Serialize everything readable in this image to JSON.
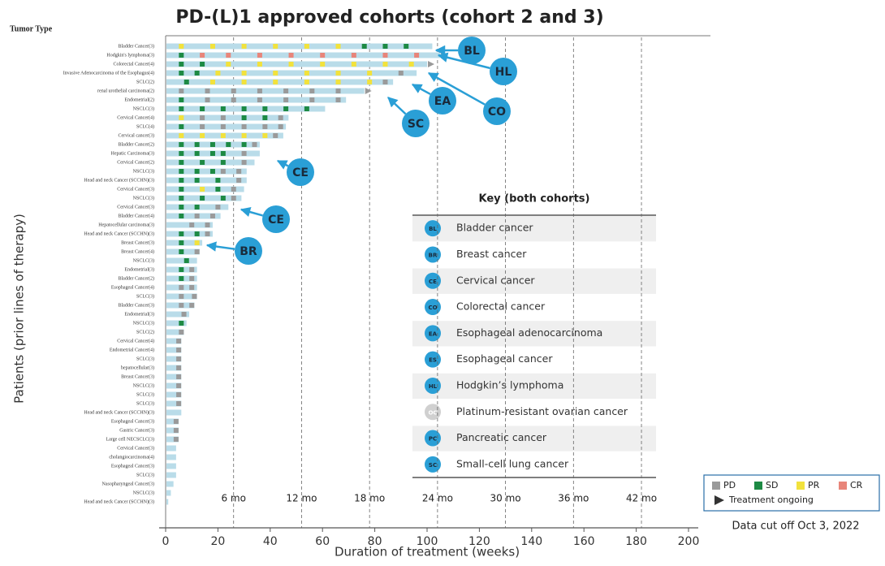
{
  "chart_data": {
    "type": "swimmer",
    "title": "PD-(L)1 approved cohorts (cohort 2 and 3)",
    "row_header": "Tumor Type",
    "xlabel": "Duration of treatment (weeks)",
    "ylabel": "Patients (prior lines of therapy)",
    "xlim": [
      0,
      200
    ],
    "xticks": [
      0,
      20,
      40,
      60,
      80,
      100,
      120,
      140,
      160,
      180,
      200
    ],
    "x2ticks": [
      {
        "value": 26,
        "label": "6 mo"
      },
      {
        "value": 52,
        "label": "12 mo"
      },
      {
        "value": 78,
        "label": "18 mo"
      },
      {
        "value": 104,
        "label": "24 mo"
      },
      {
        "value": 130,
        "label": "30 mo"
      },
      {
        "value": 156,
        "label": "36 mo"
      },
      {
        "value": 182,
        "label": "42 mo"
      }
    ],
    "bar_color": "#b9dce9",
    "status_colors": {
      "PD": "#9a9a9a",
      "SD": "#1d8a44",
      "PR": "#f2e23c",
      "CR": "#e8857a"
    },
    "legend": [
      {
        "status": "PD",
        "label": "PD"
      },
      {
        "status": "SD",
        "label": "SD"
      },
      {
        "status": "PR",
        "label": "PR"
      },
      {
        "status": "CR",
        "label": "CR"
      }
    ],
    "ongoing_label": "Treatment ongoing",
    "footnote": "Data cut off Oct 3, 2022",
    "patients": [
      {
        "label": "Bladder Cancer(3)",
        "weeks": 102,
        "responses": [
          [
            6,
            "PR"
          ],
          [
            18,
            "PR"
          ],
          [
            30,
            "PR"
          ],
          [
            42,
            "PR"
          ],
          [
            54,
            "PR"
          ],
          [
            66,
            "PR"
          ],
          [
            76,
            "SD"
          ],
          [
            84,
            "SD"
          ],
          [
            92,
            "SD"
          ]
        ]
      },
      {
        "label": "Hodgkin's lymphoma(3)",
        "weeks": 105,
        "ongoing": true,
        "responses": [
          [
            6,
            "SD"
          ],
          [
            14,
            "CR"
          ],
          [
            24,
            "CR"
          ],
          [
            36,
            "CR"
          ],
          [
            48,
            "CR"
          ],
          [
            60,
            "CR"
          ],
          [
            72,
            "CR"
          ],
          [
            84,
            "CR"
          ],
          [
            96,
            "CR"
          ]
        ]
      },
      {
        "label": "Colorectal Cancer(4)",
        "weeks": 100,
        "ongoing": true,
        "responses": [
          [
            6,
            "SD"
          ],
          [
            14,
            "SD"
          ],
          [
            24,
            "PR"
          ],
          [
            36,
            "PR"
          ],
          [
            48,
            "PR"
          ],
          [
            60,
            "PR"
          ],
          [
            72,
            "PR"
          ],
          [
            84,
            "PR"
          ],
          [
            94,
            "PR"
          ]
        ]
      },
      {
        "label": "Invasive Adenocarcinoma of the Esophagus(4)",
        "weeks": 96,
        "responses": [
          [
            6,
            "SD"
          ],
          [
            12,
            "SD"
          ],
          [
            20,
            "PR"
          ],
          [
            30,
            "PR"
          ],
          [
            42,
            "PR"
          ],
          [
            54,
            "PR"
          ],
          [
            66,
            "PR"
          ],
          [
            78,
            "PR"
          ],
          [
            90,
            "PD"
          ]
        ]
      },
      {
        "label": "SCLC(2)",
        "weeks": 87,
        "responses": [
          [
            8,
            "SD"
          ],
          [
            18,
            "PR"
          ],
          [
            30,
            "PR"
          ],
          [
            42,
            "PR"
          ],
          [
            54,
            "PR"
          ],
          [
            66,
            "PR"
          ],
          [
            78,
            "PR"
          ],
          [
            84,
            "PD"
          ]
        ]
      },
      {
        "label": "renal urothelial carcinoma(2)",
        "weeks": 76,
        "ongoing": true,
        "responses": [
          [
            6,
            "PD"
          ],
          [
            16,
            "PD"
          ],
          [
            26,
            "PD"
          ],
          [
            36,
            "PD"
          ],
          [
            46,
            "PD"
          ],
          [
            56,
            "PD"
          ],
          [
            66,
            "PD"
          ]
        ]
      },
      {
        "label": "Endometrial(2)",
        "weeks": 69,
        "responses": [
          [
            6,
            "SD"
          ],
          [
            16,
            "PD"
          ],
          [
            26,
            "PD"
          ],
          [
            36,
            "PD"
          ],
          [
            46,
            "PD"
          ],
          [
            56,
            "PD"
          ],
          [
            66,
            "PD"
          ]
        ]
      },
      {
        "label": "NSCLC(3)",
        "weeks": 61,
        "responses": [
          [
            6,
            "SD"
          ],
          [
            14,
            "SD"
          ],
          [
            22,
            "SD"
          ],
          [
            30,
            "SD"
          ],
          [
            38,
            "SD"
          ],
          [
            46,
            "SD"
          ],
          [
            54,
            "SD"
          ]
        ]
      },
      {
        "label": "Cervical Cancer(4)",
        "weeks": 47,
        "responses": [
          [
            6,
            "PR"
          ],
          [
            14,
            "PD"
          ],
          [
            22,
            "PD"
          ],
          [
            30,
            "SD"
          ],
          [
            38,
            "SD"
          ],
          [
            44,
            "PD"
          ]
        ]
      },
      {
        "label": "SCLC(4)",
        "weeks": 46,
        "responses": [
          [
            6,
            "SD"
          ],
          [
            14,
            "PD"
          ],
          [
            22,
            "PD"
          ],
          [
            30,
            "PD"
          ],
          [
            38,
            "PD"
          ],
          [
            44,
            "PD"
          ]
        ]
      },
      {
        "label": "Cervical cancer(3)",
        "weeks": 45,
        "responses": [
          [
            6,
            "PR"
          ],
          [
            14,
            "PR"
          ],
          [
            22,
            "PR"
          ],
          [
            30,
            "PR"
          ],
          [
            38,
            "PR"
          ],
          [
            42,
            "PD"
          ]
        ]
      },
      {
        "label": "Bladder Cancer(2)",
        "weeks": 36,
        "responses": [
          [
            6,
            "SD"
          ],
          [
            12,
            "SD"
          ],
          [
            18,
            "SD"
          ],
          [
            24,
            "SD"
          ],
          [
            30,
            "SD"
          ],
          [
            34,
            "PD"
          ]
        ]
      },
      {
        "label": "Hepatic Carcinoma(3)",
        "weeks": 36,
        "responses": [
          [
            6,
            "SD"
          ],
          [
            12,
            "SD"
          ],
          [
            18,
            "SD"
          ],
          [
            22,
            "SD"
          ],
          [
            30,
            "PD"
          ]
        ]
      },
      {
        "label": "Cervical Cancer(2)",
        "weeks": 34,
        "responses": [
          [
            6,
            "SD"
          ],
          [
            14,
            "SD"
          ],
          [
            22,
            "SD"
          ],
          [
            30,
            "PD"
          ]
        ]
      },
      {
        "label": "NSCLC(3)",
        "weeks": 31,
        "responses": [
          [
            6,
            "SD"
          ],
          [
            12,
            "SD"
          ],
          [
            18,
            "SD"
          ],
          [
            22,
            "PD"
          ],
          [
            28,
            "PD"
          ]
        ]
      },
      {
        "label": "Head and neck Cancer (SCCHN)(3)",
        "weeks": 31,
        "responses": [
          [
            6,
            "SD"
          ],
          [
            12,
            "SD"
          ],
          [
            20,
            "SD"
          ],
          [
            28,
            "PD"
          ]
        ]
      },
      {
        "label": "Cervical Cancer(3)",
        "weeks": 30,
        "responses": [
          [
            6,
            "SD"
          ],
          [
            14,
            "PR"
          ],
          [
            20,
            "SD"
          ],
          [
            26,
            "PD"
          ]
        ]
      },
      {
        "label": "NSCLC(3)",
        "weeks": 29,
        "responses": [
          [
            6,
            "SD"
          ],
          [
            14,
            "SD"
          ],
          [
            22,
            "SD"
          ],
          [
            26,
            "PD"
          ]
        ]
      },
      {
        "label": "Cervical Cancer(3)",
        "weeks": 24,
        "responses": [
          [
            6,
            "SD"
          ],
          [
            12,
            "SD"
          ],
          [
            20,
            "PD"
          ]
        ]
      },
      {
        "label": "Bladder Cancer(4)",
        "weeks": 21,
        "responses": [
          [
            6,
            "SD"
          ],
          [
            12,
            "PD"
          ],
          [
            18,
            "PD"
          ]
        ]
      },
      {
        "label": "Hepatocellular carcinoma(3)",
        "weeks": 18,
        "responses": [
          [
            10,
            "PD"
          ],
          [
            16,
            "PD"
          ]
        ]
      },
      {
        "label": "Head and neck Cancer (SCCHN)(3)",
        "weeks": 18,
        "responses": [
          [
            6,
            "SD"
          ],
          [
            12,
            "SD"
          ],
          [
            16,
            "PD"
          ]
        ]
      },
      {
        "label": "Breast Cancer(3)",
        "weeks": 14,
        "responses": [
          [
            6,
            "SD"
          ],
          [
            12,
            "PR"
          ]
        ]
      },
      {
        "label": "Breast Cancer(4)",
        "weeks": 13,
        "responses": [
          [
            6,
            "SD"
          ],
          [
            12,
            "PD"
          ]
        ]
      },
      {
        "label": "NSCLC(3)",
        "weeks": 12,
        "responses": [
          [
            8,
            "SD"
          ]
        ]
      },
      {
        "label": "Endometrial(3)",
        "weeks": 12,
        "responses": [
          [
            6,
            "SD"
          ],
          [
            10,
            "PD"
          ]
        ]
      },
      {
        "label": "Bladder Cancer(2)",
        "weeks": 12,
        "responses": [
          [
            6,
            "SD"
          ],
          [
            10,
            "PD"
          ]
        ]
      },
      {
        "label": "Esophageal Cancer(4)",
        "weeks": 12,
        "responses": [
          [
            6,
            "PD"
          ],
          [
            10,
            "PD"
          ]
        ]
      },
      {
        "label": "SCLC(3)",
        "weeks": 12,
        "responses": [
          [
            6,
            "PD"
          ],
          [
            11,
            "PD"
          ]
        ]
      },
      {
        "label": "Bladder Cancer(3)",
        "weeks": 11,
        "responses": [
          [
            6,
            "PD"
          ],
          [
            10,
            "PD"
          ]
        ]
      },
      {
        "label": "Endometrial(3)",
        "weeks": 9,
        "responses": [
          [
            7,
            "PD"
          ]
        ]
      },
      {
        "label": "NSCLC(3)",
        "weeks": 8,
        "responses": [
          [
            6,
            "SD"
          ]
        ]
      },
      {
        "label": "SCLC(2)",
        "weeks": 7,
        "responses": [
          [
            6,
            "PD"
          ]
        ]
      },
      {
        "label": "Cervical Cancer(4)",
        "weeks": 6,
        "responses": [
          [
            5,
            "PD"
          ]
        ]
      },
      {
        "label": "Endometrial Cancer(4)",
        "weeks": 6,
        "responses": [
          [
            5,
            "PD"
          ]
        ]
      },
      {
        "label": "SCLC(3)",
        "weeks": 6,
        "responses": [
          [
            5,
            "PD"
          ]
        ]
      },
      {
        "label": "hepatocellular(3)",
        "weeks": 6,
        "responses": [
          [
            5,
            "PD"
          ]
        ]
      },
      {
        "label": "Breast Cancer(3)",
        "weeks": 6,
        "responses": [
          [
            5,
            "PD"
          ]
        ]
      },
      {
        "label": "NSCLC(3)",
        "weeks": 6,
        "responses": [
          [
            5,
            "PD"
          ]
        ]
      },
      {
        "label": "SCLC(3)",
        "weeks": 6,
        "responses": [
          [
            5,
            "PD"
          ]
        ]
      },
      {
        "label": "SCLC(3)",
        "weeks": 6,
        "responses": [
          [
            5,
            "PD"
          ]
        ]
      },
      {
        "label": "Head and neck Cancer (SCCHN)(3)",
        "weeks": 6,
        "responses": []
      },
      {
        "label": "Esophageal Cancer(3)",
        "weeks": 5,
        "responses": [
          [
            4,
            "PD"
          ]
        ]
      },
      {
        "label": "Gastric Cancer(3)",
        "weeks": 5,
        "responses": [
          [
            4,
            "PD"
          ]
        ]
      },
      {
        "label": "Large cell NECSCLC(3)",
        "weeks": 5,
        "responses": [
          [
            4,
            "PD"
          ]
        ]
      },
      {
        "label": "Cervical Cancer(3)",
        "weeks": 4,
        "responses": []
      },
      {
        "label": "cholangiocarcinoma(4)",
        "weeks": 4,
        "responses": []
      },
      {
        "label": "Esophageal Cancer(3)",
        "weeks": 4,
        "responses": []
      },
      {
        "label": "SCLC(3)",
        "weeks": 4,
        "responses": []
      },
      {
        "label": "Nasopharyngeal Cancer(3)",
        "weeks": 3,
        "responses": []
      },
      {
        "label": "NSCLC(3)",
        "weeks": 2,
        "responses": []
      },
      {
        "label": "Head and neck Cancer (SCCHN)(3)",
        "weeks": 1,
        "responses": []
      }
    ],
    "callouts": [
      "BL",
      "HL",
      "CO",
      "EA",
      "SC",
      "CE",
      "CE",
      "BR"
    ],
    "key": {
      "title": "Key (both cohorts)",
      "entries": [
        {
          "abbr": "BL",
          "label": "Bladder cancer"
        },
        {
          "abbr": "BR",
          "label": "Breast cancer"
        },
        {
          "abbr": "CE",
          "label": "Cervical cancer"
        },
        {
          "abbr": "CO",
          "label": "Colorectal cancer"
        },
        {
          "abbr": "EA",
          "label": "Esophageal adenocarcinoma"
        },
        {
          "abbr": "ES",
          "label": "Esophageal cancer"
        },
        {
          "abbr": "HL",
          "label": "Hodgkin’s lymphoma"
        },
        {
          "abbr": "OC",
          "label": "Platinum-resistant ovarian cancer",
          "muted": true
        },
        {
          "abbr": "PC",
          "label": "Pancreatic cancer"
        },
        {
          "abbr": "SC",
          "label": "Small-cell lung cancer"
        }
      ]
    }
  }
}
